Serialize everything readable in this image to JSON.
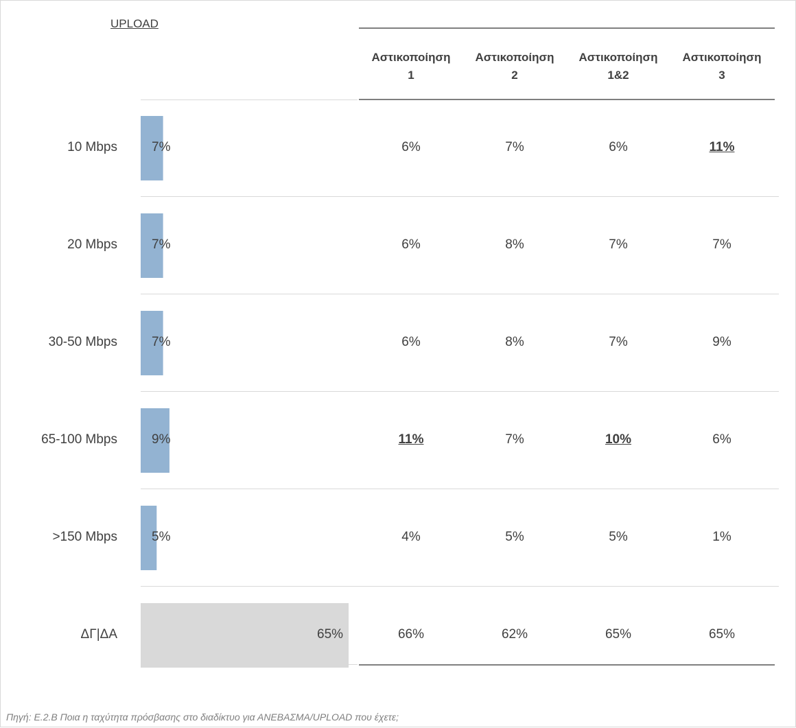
{
  "chart_data": {
    "type": "table",
    "title": "UPLOAD",
    "columns": [
      "Αστικοποίηση 1",
      "Αστικοποίηση 2",
      "Αστικοποίηση 1&2",
      "Αστικοποίηση 3"
    ],
    "column_header_lines": [
      [
        "Αστικοποίηση",
        "1"
      ],
      [
        "Αστικοποίηση",
        "2"
      ],
      [
        "Αστικοποίηση",
        "1&2"
      ],
      [
        "Αστικοποίηση",
        "3"
      ]
    ],
    "rows": [
      {
        "label": "10 Mbps",
        "total": 7,
        "total_label": "7%",
        "values": [
          "6%",
          "7%",
          "6%",
          "11%"
        ],
        "highlight": [
          false,
          false,
          false,
          true
        ]
      },
      {
        "label": "20 Mbps",
        "total": 7,
        "total_label": "7%",
        "values": [
          "6%",
          "8%",
          "7%",
          "7%"
        ],
        "highlight": [
          false,
          false,
          false,
          false
        ]
      },
      {
        "label": "30-50 Mbps",
        "total": 7,
        "total_label": "7%",
        "values": [
          "6%",
          "8%",
          "7%",
          "9%"
        ],
        "highlight": [
          false,
          false,
          false,
          false
        ]
      },
      {
        "label": "65-100 Mbps",
        "total": 9,
        "total_label": "9%",
        "values": [
          "11%",
          "7%",
          "10%",
          "6%"
        ],
        "highlight": [
          true,
          false,
          true,
          false
        ]
      },
      {
        "label": ">150 Mbps",
        "total": 5,
        "total_label": "5%",
        "values": [
          "4%",
          "5%",
          "5%",
          "1%"
        ],
        "highlight": [
          false,
          false,
          false,
          false
        ]
      },
      {
        "label": "ΔΓ|ΔΑ",
        "total": 65,
        "total_label": "65%",
        "values": [
          "66%",
          "62%",
          "65%",
          "65%"
        ],
        "highlight": [
          false,
          false,
          false,
          false
        ]
      }
    ],
    "bar_colors": {
      "default": "#93b3d2",
      "dk_na": "#d9d9d9"
    },
    "xlim": [
      0,
      65
    ],
    "footer": "Πηγή: Ε.2.Β Ποια η ταχύτητα πρόσβασης στο διαδίκτυο για ΑΝΕΒΑΣΜΑ/UPLOAD που έχετε;"
  }
}
